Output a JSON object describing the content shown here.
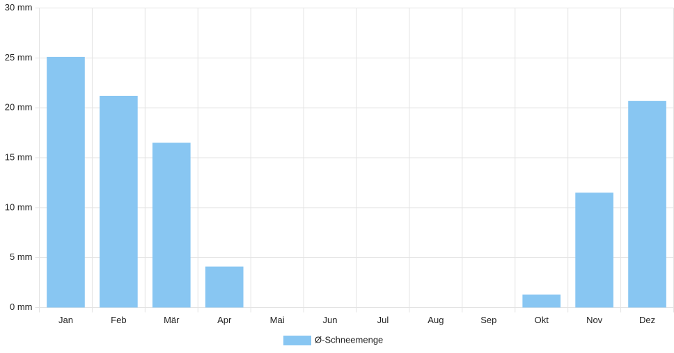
{
  "chart_data": {
    "type": "bar",
    "categories": [
      "Jan",
      "Feb",
      "Mär",
      "Apr",
      "Mai",
      "Jun",
      "Jul",
      "Aug",
      "Sep",
      "Okt",
      "Nov",
      "Dez"
    ],
    "series": [
      {
        "name": "Ø-Schneemenge",
        "color": "#88c6f2",
        "values": [
          25.1,
          21.2,
          16.5,
          4.1,
          0,
          0,
          0,
          0,
          0,
          1.3,
          11.5,
          20.7
        ]
      }
    ],
    "ylim": [
      0,
      30
    ],
    "yticks": [
      {
        "value": 0,
        "label": "0 mm"
      },
      {
        "value": 5,
        "label": "5 mm"
      },
      {
        "value": 10,
        "label": "10 mm"
      },
      {
        "value": 15,
        "label": "15 mm"
      },
      {
        "value": 20,
        "label": "20 mm"
      },
      {
        "value": 25,
        "label": "25 mm"
      },
      {
        "value": 30,
        "label": "30 mm"
      }
    ],
    "grid": true,
    "legend": "bottom"
  }
}
